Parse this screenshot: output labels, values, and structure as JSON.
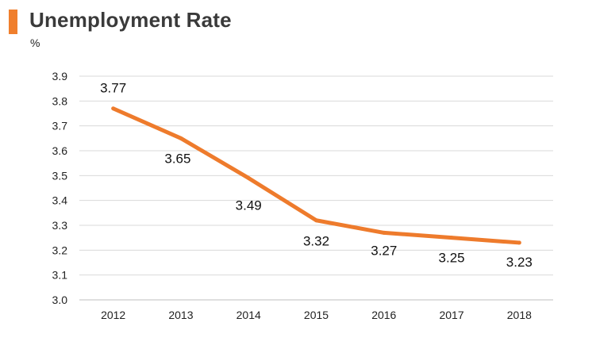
{
  "header": {
    "title": "Unemployment Rate",
    "unit": "%"
  },
  "colors": {
    "accent": "#f07f2d",
    "line": "#ee7b2c",
    "grid": "#d9d9d9",
    "axis": "#bfbfbf"
  },
  "chart_data": {
    "type": "line",
    "title": "Unemployment Rate",
    "ylabel": "%",
    "xlabel": "",
    "categories": [
      "2012",
      "2013",
      "2014",
      "2015",
      "2016",
      "2017",
      "2018"
    ],
    "series": [
      {
        "values": [
          3.77,
          3.65,
          3.49,
          3.32,
          3.27,
          3.25,
          3.23
        ]
      }
    ],
    "data_labels": [
      "3.77",
      "3.65",
      "3.49",
      "3.32",
      "3.27",
      "3.25",
      "3.23"
    ],
    "ylim": [
      3.0,
      3.9
    ],
    "yticks": [
      "3.0",
      "3.1",
      "3.2",
      "3.3",
      "3.4",
      "3.5",
      "3.6",
      "3.7",
      "3.8",
      "3.9"
    ],
    "grid": true,
    "legend": "none"
  }
}
